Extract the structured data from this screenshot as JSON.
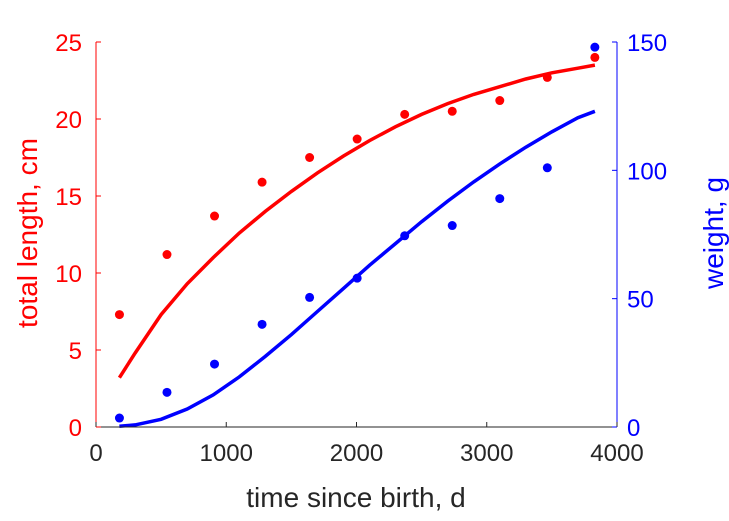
{
  "chart_data": {
    "type": "scatter",
    "xlabel": "time since birth, d",
    "ylabel_left": "total length, cm",
    "ylabel_right": "weight, g",
    "xlim": [
      0,
      4000
    ],
    "ylim_left": [
      0,
      25
    ],
    "ylim_right": [
      0,
      150
    ],
    "x_ticks": [
      0,
      1000,
      2000,
      3000,
      4000
    ],
    "y_left_ticks": [
      0,
      5,
      10,
      15,
      20,
      25
    ],
    "y_right_ticks": [
      0,
      50,
      100,
      150
    ],
    "grid": false,
    "colors": {
      "left": "#ff0000",
      "right": "#0000ff",
      "axis": "#262626"
    },
    "series": [
      {
        "axis": "left",
        "color": "#ff0000",
        "points": [
          {
            "x": 180,
            "y": 7.3
          },
          {
            "x": 545,
            "y": 11.2
          },
          {
            "x": 910,
            "y": 13.7
          },
          {
            "x": 1275,
            "y": 15.9
          },
          {
            "x": 1640,
            "y": 17.5
          },
          {
            "x": 2005,
            "y": 18.7
          },
          {
            "x": 2370,
            "y": 20.3
          },
          {
            "x": 2735,
            "y": 20.5
          },
          {
            "x": 3100,
            "y": 21.2
          },
          {
            "x": 3465,
            "y": 22.7
          },
          {
            "x": 3830,
            "y": 24.0
          }
        ],
        "fit": [
          {
            "x": 180,
            "y": 3.2
          },
          {
            "x": 300,
            "y": 4.8
          },
          {
            "x": 500,
            "y": 7.3
          },
          {
            "x": 700,
            "y": 9.3
          },
          {
            "x": 900,
            "y": 11.0
          },
          {
            "x": 1100,
            "y": 12.6
          },
          {
            "x": 1300,
            "y": 14.0
          },
          {
            "x": 1500,
            "y": 15.3
          },
          {
            "x": 1700,
            "y": 16.5
          },
          {
            "x": 1900,
            "y": 17.6
          },
          {
            "x": 2100,
            "y": 18.6
          },
          {
            "x": 2300,
            "y": 19.5
          },
          {
            "x": 2500,
            "y": 20.3
          },
          {
            "x": 2700,
            "y": 21.0
          },
          {
            "x": 2900,
            "y": 21.6
          },
          {
            "x": 3100,
            "y": 22.1
          },
          {
            "x": 3300,
            "y": 22.6
          },
          {
            "x": 3500,
            "y": 23.0
          },
          {
            "x": 3700,
            "y": 23.3
          },
          {
            "x": 3830,
            "y": 23.5
          }
        ]
      },
      {
        "axis": "right",
        "color": "#0000ff",
        "points": [
          {
            "x": 180,
            "y": 3.5
          },
          {
            "x": 545,
            "y": 13.5
          },
          {
            "x": 910,
            "y": 24.5
          },
          {
            "x": 1275,
            "y": 40
          },
          {
            "x": 1640,
            "y": 50.5
          },
          {
            "x": 2005,
            "y": 58
          },
          {
            "x": 2370,
            "y": 74.5
          },
          {
            "x": 2735,
            "y": 78.5
          },
          {
            "x": 3100,
            "y": 89
          },
          {
            "x": 3465,
            "y": 101
          },
          {
            "x": 3830,
            "y": 148
          }
        ],
        "fit": [
          {
            "x": 180,
            "y": 0.3
          },
          {
            "x": 300,
            "y": 0.8
          },
          {
            "x": 500,
            "y": 3.0
          },
          {
            "x": 700,
            "y": 7.0
          },
          {
            "x": 900,
            "y": 12.5
          },
          {
            "x": 1100,
            "y": 19.5
          },
          {
            "x": 1300,
            "y": 27.5
          },
          {
            "x": 1500,
            "y": 36.0
          },
          {
            "x": 1700,
            "y": 45.0
          },
          {
            "x": 1900,
            "y": 54.0
          },
          {
            "x": 2100,
            "y": 63.0
          },
          {
            "x": 2300,
            "y": 71.5
          },
          {
            "x": 2500,
            "y": 80.0
          },
          {
            "x": 2700,
            "y": 88.0
          },
          {
            "x": 2900,
            "y": 95.5
          },
          {
            "x": 3100,
            "y": 102.5
          },
          {
            "x": 3300,
            "y": 109.0
          },
          {
            "x": 3500,
            "y": 115.0
          },
          {
            "x": 3700,
            "y": 120.5
          },
          {
            "x": 3830,
            "y": 123.0
          }
        ]
      }
    ]
  }
}
